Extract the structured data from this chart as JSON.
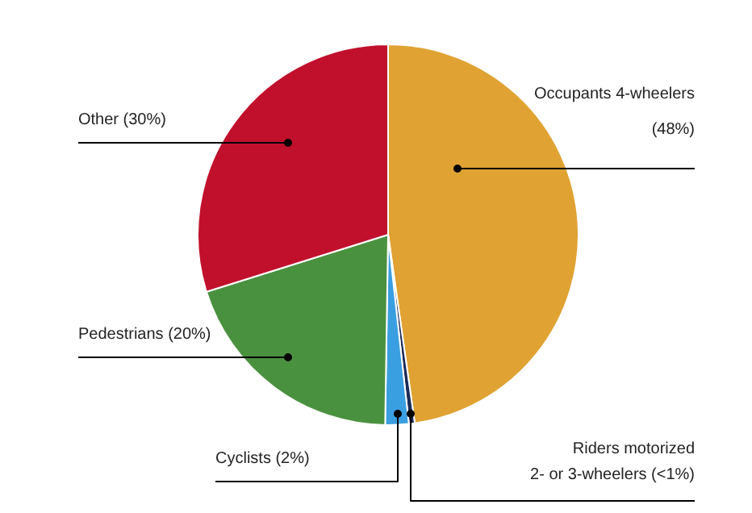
{
  "chart_data": {
    "type": "pie",
    "categories": [
      "Occupants 4-wheelers",
      "Riders motorized\n2- or 3-wheelers",
      "Cyclists",
      "Pedestrians",
      "Other"
    ],
    "values": [
      48,
      0.5,
      2,
      20,
      30
    ],
    "value_labels": [
      "(48%)",
      "(<1%)",
      "(2%)",
      "(20%)",
      "(30%)"
    ],
    "colors": [
      "#e0a232",
      "#1c2a56",
      "#3a9fe0",
      "#4a913f",
      "#c1102c"
    ]
  }
}
